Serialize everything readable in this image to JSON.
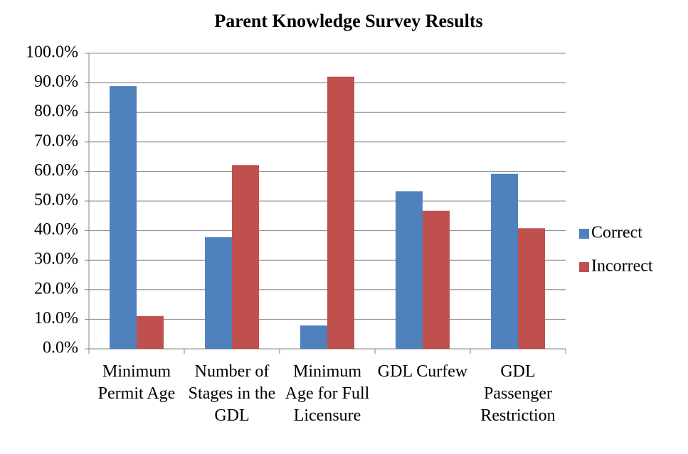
{
  "chart_data": {
    "type": "bar",
    "title": "Parent Knowledge Survey Results",
    "categories": [
      "Minimum Permit Age",
      "Number of Stages in the GDL",
      "Minimum Age for Full Licensure",
      "GDL Curfew",
      "GDL Passenger Restriction"
    ],
    "series": [
      {
        "name": "Correct",
        "color": "#4f81bd",
        "values": [
          88.9,
          37.8,
          7.9,
          53.3,
          59.2
        ]
      },
      {
        "name": "Incorrect",
        "color": "#c0504d",
        "values": [
          11.1,
          62.2,
          92.1,
          46.7,
          40.8
        ]
      }
    ],
    "ylim": [
      0,
      100
    ],
    "yticks": [
      {
        "value": 0,
        "label": "0.0%"
      },
      {
        "value": 10,
        "label": "10.0%"
      },
      {
        "value": 20,
        "label": "20.0%"
      },
      {
        "value": 30,
        "label": "30.0%"
      },
      {
        "value": 40,
        "label": "40.0%"
      },
      {
        "value": 50,
        "label": "50.0%"
      },
      {
        "value": 60,
        "label": "60.0%"
      },
      {
        "value": 70,
        "label": "70.0%"
      },
      {
        "value": 80,
        "label": "80.0%"
      },
      {
        "value": 90,
        "label": "90.0%"
      },
      {
        "value": 100,
        "label": "100.0%"
      }
    ],
    "grid": true,
    "legend": "right"
  }
}
